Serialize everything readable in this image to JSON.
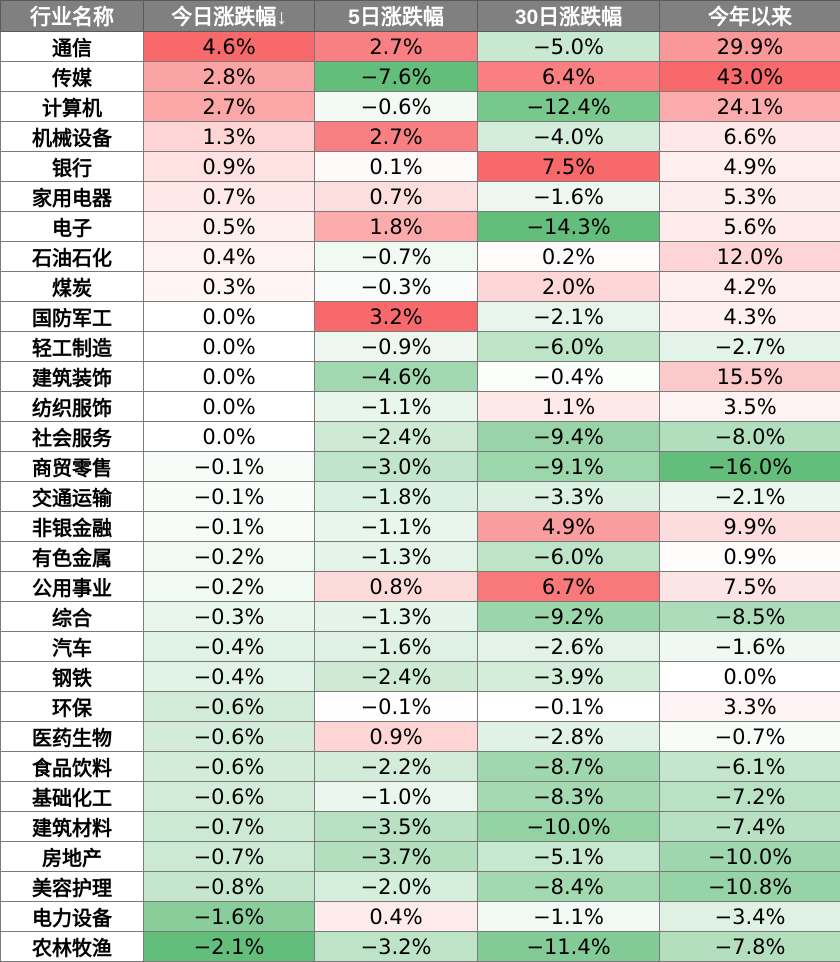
{
  "table": {
    "headers": [
      "行业名称",
      "今日涨跌幅↓",
      "5日涨跌幅",
      "30日涨跌幅",
      "今年以来"
    ],
    "rows": [
      [
        "通信",
        "4.6%",
        "2.7%",
        "−5.0%",
        "29.9%"
      ],
      [
        "传媒",
        "2.8%",
        "−7.6%",
        "6.4%",
        "43.0%"
      ],
      [
        "计算机",
        "2.7%",
        "−0.6%",
        "−12.4%",
        "24.1%"
      ],
      [
        "机械设备",
        "1.3%",
        "2.7%",
        "−4.0%",
        "6.6%"
      ],
      [
        "银行",
        "0.9%",
        "0.1%",
        "7.5%",
        "4.9%"
      ],
      [
        "家用电器",
        "0.7%",
        "0.7%",
        "−1.6%",
        "5.3%"
      ],
      [
        "电子",
        "0.5%",
        "1.8%",
        "−14.3%",
        "5.6%"
      ],
      [
        "石油石化",
        "0.4%",
        "−0.7%",
        "0.2%",
        "12.0%"
      ],
      [
        "煤炭",
        "0.3%",
        "−0.3%",
        "2.0%",
        "4.2%"
      ],
      [
        "国防军工",
        "0.0%",
        "3.2%",
        "−2.1%",
        "4.3%"
      ],
      [
        "轻工制造",
        "0.0%",
        "−0.9%",
        "−6.0%",
        "−2.7%"
      ],
      [
        "建筑装饰",
        "0.0%",
        "−4.6%",
        "−0.4%",
        "15.5%"
      ],
      [
        "纺织服饰",
        "0.0%",
        "−1.1%",
        "1.1%",
        "3.5%"
      ],
      [
        "社会服务",
        "0.0%",
        "−2.4%",
        "−9.4%",
        "−8.0%"
      ],
      [
        "商贸零售",
        "−0.1%",
        "−3.0%",
        "−9.1%",
        "−16.0%"
      ],
      [
        "交通运输",
        "−0.1%",
        "−1.8%",
        "−3.3%",
        "−2.1%"
      ],
      [
        "非银金融",
        "−0.1%",
        "−1.1%",
        "4.9%",
        "9.9%"
      ],
      [
        "有色金属",
        "−0.2%",
        "−1.3%",
        "−6.0%",
        "0.9%"
      ],
      [
        "公用事业",
        "−0.2%",
        "0.8%",
        "6.7%",
        "7.5%"
      ],
      [
        "综合",
        "−0.3%",
        "−1.3%",
        "−9.2%",
        "−8.5%"
      ],
      [
        "汽车",
        "−0.4%",
        "−1.6%",
        "−2.6%",
        "−1.6%"
      ],
      [
        "钢铁",
        "−0.4%",
        "−2.4%",
        "−3.9%",
        "0.0%"
      ],
      [
        "环保",
        "−0.6%",
        "−0.1%",
        "−0.1%",
        "3.3%"
      ],
      [
        "医药生物",
        "−0.6%",
        "0.9%",
        "−2.8%",
        "−0.7%"
      ],
      [
        "食品饮料",
        "−0.6%",
        "−2.2%",
        "−8.7%",
        "−6.1%"
      ],
      [
        "基础化工",
        "−0.6%",
        "−1.0%",
        "−8.3%",
        "−7.2%"
      ],
      [
        "建筑材料",
        "−0.7%",
        "−3.5%",
        "−10.0%",
        "−7.4%"
      ],
      [
        "房地产",
        "−0.7%",
        "−3.7%",
        "−5.1%",
        "−10.0%"
      ],
      [
        "美容护理",
        "−0.8%",
        "−2.0%",
        "−8.4%",
        "−10.8%"
      ],
      [
        "电力设备",
        "−1.6%",
        "0.4%",
        "−1.1%",
        "−3.4%"
      ],
      [
        "农林牧渔",
        "−2.1%",
        "−3.2%",
        "−11.4%",
        "−7.8%"
      ]
    ]
  },
  "colors": {
    "header_bg": "#808080",
    "header_text": "#ffffff",
    "positive_max": "#f8696b",
    "negative_max": "#63be7b",
    "neutral": "#ffffff"
  }
}
